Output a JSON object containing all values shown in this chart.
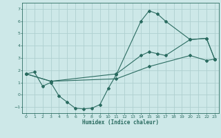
{
  "xlabel": "Humidex (Indice chaleur)",
  "background_color": "#cde8e8",
  "grid_color": "#aed0d0",
  "line_color": "#2a6b60",
  "xlim": [
    -0.5,
    23.5
  ],
  "ylim": [
    -1.5,
    7.5
  ],
  "yticks": [
    -1,
    0,
    1,
    2,
    3,
    4,
    5,
    6,
    7
  ],
  "xticks": [
    0,
    1,
    2,
    3,
    4,
    5,
    6,
    7,
    8,
    9,
    10,
    11,
    12,
    13,
    14,
    15,
    16,
    17,
    18,
    19,
    20,
    21,
    22,
    23
  ],
  "line1_x": [
    0,
    1,
    2,
    3,
    4,
    5,
    6,
    7,
    8,
    9,
    10,
    11,
    14,
    15,
    16,
    17,
    20,
    22,
    23
  ],
  "line1_y": [
    1.7,
    1.85,
    0.7,
    1.0,
    -0.1,
    -0.6,
    -1.1,
    -1.15,
    -1.1,
    -0.8,
    0.5,
    1.65,
    6.0,
    6.85,
    6.6,
    6.0,
    4.5,
    4.6,
    2.9
  ],
  "line2_x": [
    0,
    3,
    11,
    14,
    15,
    16,
    17,
    20,
    22,
    23
  ],
  "line2_y": [
    1.7,
    1.1,
    1.7,
    3.2,
    3.5,
    3.35,
    3.2,
    4.5,
    4.6,
    2.9
  ],
  "line3_x": [
    0,
    3,
    11,
    15,
    20,
    22,
    23
  ],
  "line3_y": [
    1.7,
    1.1,
    1.3,
    2.3,
    3.2,
    2.8,
    2.9
  ]
}
